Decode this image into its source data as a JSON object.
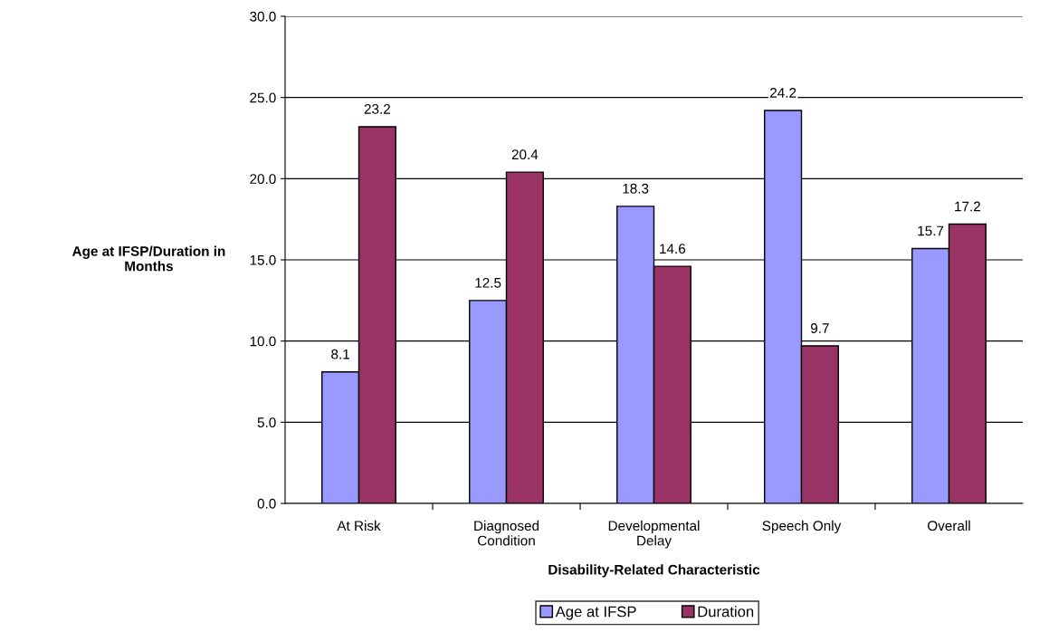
{
  "chart_data": {
    "type": "bar",
    "xlabel": "Disability-Related Characteristic",
    "ylabel": "Age at IFSP/Duration in\nMonths",
    "categories": [
      "At Risk",
      "Diagnosed\nCondition",
      "Developmental\nDelay",
      "Speech Only",
      "Overall"
    ],
    "series": [
      {
        "name": "Age at IFSP",
        "color": "#9999ff",
        "values": [
          8.1,
          12.5,
          18.3,
          24.2,
          15.7
        ]
      },
      {
        "name": "Duration",
        "color": "#993366",
        "values": [
          23.2,
          20.4,
          14.6,
          9.7,
          17.2
        ]
      }
    ],
    "ylim": [
      0,
      30
    ],
    "yticks": [
      {
        "value": 0,
        "label": "0.0"
      },
      {
        "value": 5,
        "label": "5.0"
      },
      {
        "value": 10,
        "label": "10.0"
      },
      {
        "value": 15,
        "label": "15.0"
      },
      {
        "value": 20,
        "label": "20.0"
      },
      {
        "value": 25,
        "label": "25.0"
      },
      {
        "value": 30,
        "label": "30.0"
      }
    ],
    "grid": "y",
    "legend": "bottom",
    "data_labels": true
  }
}
